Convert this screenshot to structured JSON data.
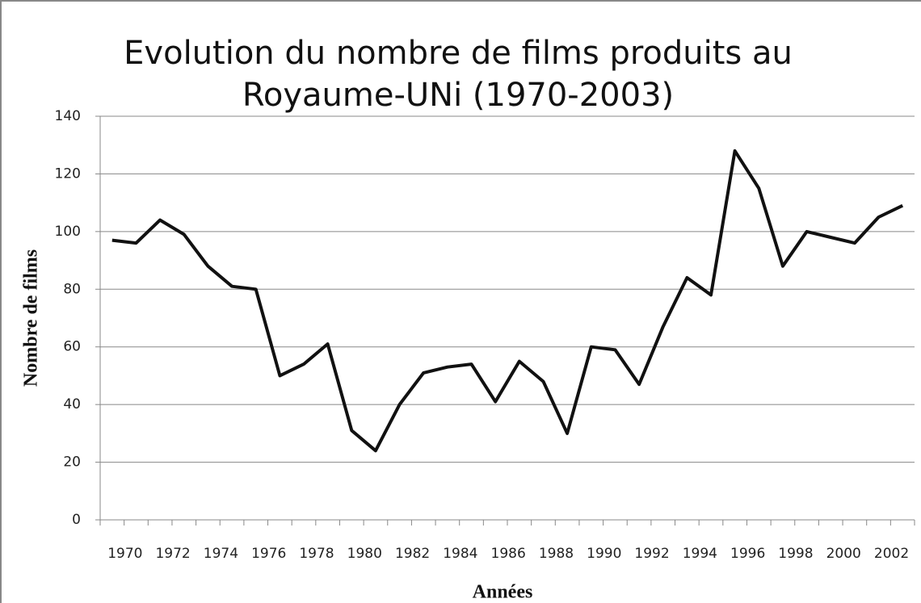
{
  "chart_data": {
    "type": "line",
    "title": "Evolution du nombre de films produits au Royaume-UNi (1970-2003)",
    "x_label": "Années",
    "y_label": "Nombre de films",
    "categories": [
      "1970",
      null,
      "1972",
      null,
      "1974",
      null,
      "1976",
      null,
      "1978",
      null,
      "1980",
      null,
      "1982",
      null,
      "1984",
      null,
      "1986",
      null,
      "1988",
      null,
      "1990",
      null,
      "1992",
      null,
      "1994",
      null,
      "1996",
      null,
      "1998",
      null,
      "2000",
      null,
      "2002",
      null
    ],
    "values": [
      97,
      96,
      104,
      99,
      88,
      81,
      80,
      50,
      54,
      61,
      31,
      24,
      40,
      51,
      53,
      54,
      41,
      55,
      48,
      30,
      60,
      59,
      47,
      67,
      84,
      78,
      128,
      115,
      88,
      100,
      98,
      96,
      105,
      109
    ],
    "color": "#111111",
    "ylim": [
      0,
      140
    ],
    "yticks": [
      0,
      20,
      40,
      60,
      80,
      100,
      120,
      140
    ],
    "grid": true
  }
}
